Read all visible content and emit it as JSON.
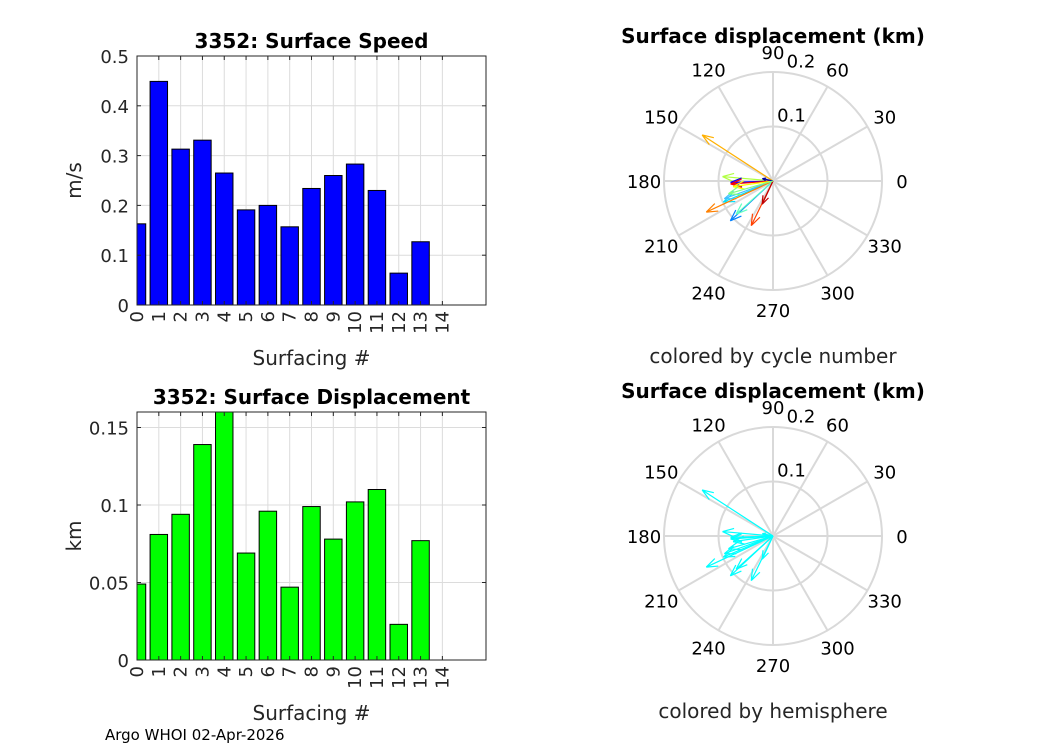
{
  "footer": "Argo WHOI 02-Apr-2026",
  "chart_data": [
    {
      "type": "bar",
      "title": "3352: Surface Speed",
      "xlabel": "Surfacing #",
      "ylabel": "m/s",
      "categories": [
        "0",
        "1",
        "2",
        "3",
        "4",
        "5",
        "6",
        "7",
        "8",
        "9",
        "10",
        "11",
        "12",
        "13"
      ],
      "xticks": [
        "0",
        "1",
        "2",
        "3",
        "4",
        "5",
        "6",
        "7",
        "8",
        "9",
        "10",
        "11",
        "12",
        "13",
        "14"
      ],
      "values": [
        0.163,
        0.449,
        0.313,
        0.331,
        0.265,
        0.191,
        0.2,
        0.157,
        0.234,
        0.26,
        0.283,
        0.23,
        0.064,
        0.127
      ],
      "ylim": [
        0,
        0.5
      ],
      "xlim": [
        0,
        16
      ],
      "yticks": [
        "0",
        "0.1",
        "0.2",
        "0.3",
        "0.4",
        "0.5"
      ],
      "ytick_values": [
        0,
        0.1,
        0.2,
        0.3,
        0.4,
        0.5
      ],
      "color": "#0000ff",
      "grid": true
    },
    {
      "type": "bar",
      "title": "3352: Surface Displacement",
      "xlabel": "Surfacing #",
      "ylabel": "km",
      "categories": [
        "0",
        "1",
        "2",
        "3",
        "4",
        "5",
        "6",
        "7",
        "8",
        "9",
        "10",
        "11",
        "12",
        "13"
      ],
      "xticks": [
        "0",
        "1",
        "2",
        "3",
        "4",
        "5",
        "6",
        "7",
        "8",
        "9",
        "10",
        "11",
        "12",
        "13",
        "14"
      ],
      "values": [
        0.049,
        0.081,
        0.094,
        0.139,
        0.165,
        0.069,
        0.096,
        0.047,
        0.099,
        0.078,
        0.102,
        0.11,
        0.023,
        0.077
      ],
      "ylim": [
        0,
        0.16
      ],
      "xlim": [
        0,
        16
      ],
      "yticks": [
        "0",
        "0.05",
        "0.1",
        "0.15"
      ],
      "ytick_values": [
        0,
        0.05,
        0.1,
        0.15
      ],
      "color": "#00ff00",
      "grid": true
    },
    {
      "type": "polar-compass",
      "title": "Surface displacement (km)",
      "subtitle": "colored by cycle number",
      "rlim": [
        0,
        0.2
      ],
      "rticks": [
        "0.1",
        "0.2"
      ],
      "rtick_values": [
        0.1,
        0.2
      ],
      "theta_ticks": [
        "0",
        "30",
        "60",
        "90",
        "120",
        "150",
        "180",
        "210",
        "240",
        "270",
        "300",
        "330"
      ],
      "arrows": [
        {
          "r": 0.155,
          "theta": 147,
          "color": "#ffb000"
        },
        {
          "r": 0.093,
          "theta": 175,
          "color": "#b0ff40"
        },
        {
          "r": 0.078,
          "theta": 182,
          "color": "#0000ff"
        },
        {
          "r": 0.078,
          "theta": 184,
          "color": "#ff0000"
        },
        {
          "r": 0.074,
          "theta": 188,
          "color": "#ffff00"
        },
        {
          "r": 0.099,
          "theta": 203,
          "color": "#00e0ff"
        },
        {
          "r": 0.095,
          "theta": 200,
          "color": "#40c0ff"
        },
        {
          "r": 0.135,
          "theta": 205,
          "color": "#ff8000"
        },
        {
          "r": 0.107,
          "theta": 223,
          "color": "#0080ff"
        },
        {
          "r": 0.091,
          "theta": 222,
          "color": "#60ffc0"
        },
        {
          "r": 0.091,
          "theta": 244,
          "color": "#ff4000"
        },
        {
          "r": 0.047,
          "theta": 245,
          "color": "#c00000"
        },
        {
          "r": 0.02,
          "theta": 167,
          "color": "#0000a0"
        },
        {
          "r": 0.085,
          "theta": 196,
          "color": "#80ff80"
        }
      ]
    },
    {
      "type": "polar-compass",
      "title": "Surface displacement (km)",
      "subtitle": "colored by hemisphere",
      "rlim": [
        0,
        0.2
      ],
      "rticks": [
        "0.1",
        "0.2"
      ],
      "rtick_values": [
        0.1,
        0.2
      ],
      "theta_ticks": [
        "0",
        "30",
        "60",
        "90",
        "120",
        "150",
        "180",
        "210",
        "240",
        "270",
        "300",
        "330"
      ],
      "arrows": [
        {
          "r": 0.155,
          "theta": 147,
          "color": "#00ffff"
        },
        {
          "r": 0.093,
          "theta": 175,
          "color": "#00ffff"
        },
        {
          "r": 0.078,
          "theta": 182,
          "color": "#00ffff"
        },
        {
          "r": 0.078,
          "theta": 184,
          "color": "#00ffff"
        },
        {
          "r": 0.074,
          "theta": 188,
          "color": "#00ffff"
        },
        {
          "r": 0.099,
          "theta": 203,
          "color": "#00ffff"
        },
        {
          "r": 0.095,
          "theta": 200,
          "color": "#00ffff"
        },
        {
          "r": 0.135,
          "theta": 205,
          "color": "#00ffff"
        },
        {
          "r": 0.107,
          "theta": 223,
          "color": "#00ffff"
        },
        {
          "r": 0.091,
          "theta": 222,
          "color": "#00ffff"
        },
        {
          "r": 0.091,
          "theta": 244,
          "color": "#00ffff"
        },
        {
          "r": 0.047,
          "theta": 245,
          "color": "#00ffff"
        },
        {
          "r": 0.02,
          "theta": 167,
          "color": "#00ffff"
        },
        {
          "r": 0.085,
          "theta": 196,
          "color": "#00ffff"
        }
      ]
    }
  ]
}
